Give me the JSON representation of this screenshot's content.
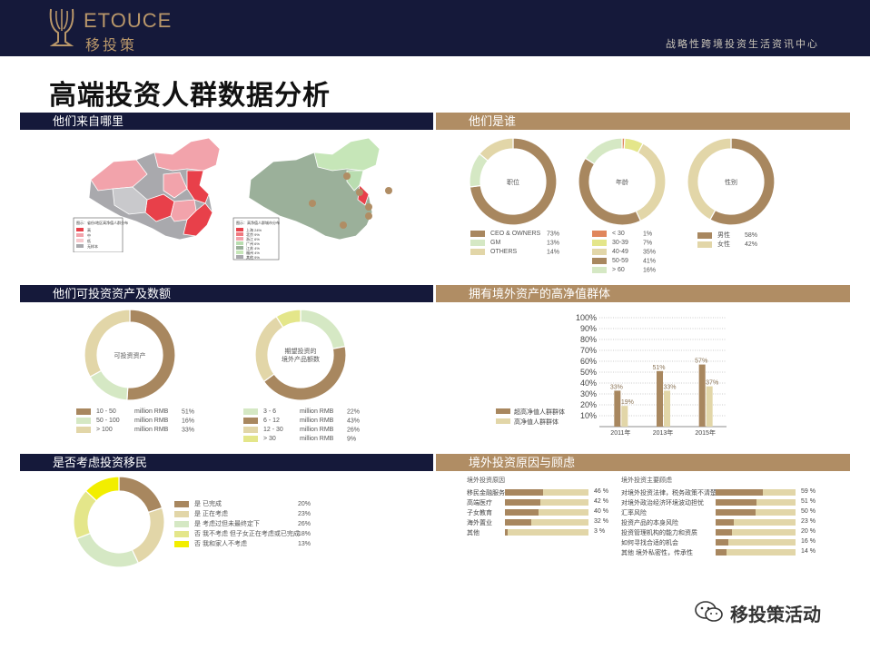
{
  "header": {
    "brand_en": "ETOUCE",
    "brand_cn": "移投策",
    "tagline": "战略性跨境投资生活资讯中心"
  },
  "title": "高端投资人群数据分析",
  "sections": {
    "origin": "他们来自哪里",
    "who": "他们是谁",
    "assets": "他们可投资资产及数额",
    "overseas": "拥有境外资产的高净值群体",
    "migration": "是否考虑投资移民",
    "reasons": "境外投资原因与顾虑"
  },
  "colors": {
    "navy": "#15193a",
    "gold": "#b08d64",
    "brown": "#a8875f",
    "sand": "#e2d6a8",
    "light_green": "#d5e8c4",
    "yellow": "#f2ee00",
    "yellow_green": "#e4e68a",
    "orange": "#e0865c",
    "map_red": "#e8404a",
    "map_pink": "#f2a3ab",
    "map_grey": "#a9a9ad",
    "map_green": "#9bb09a"
  },
  "maps": {
    "legend_left": {
      "title": "图示：省份/地区高净值人群分布",
      "items": [
        "高",
        "中",
        "低",
        "无样本"
      ]
    },
    "legend_right": {
      "title": "图示：高净值人群城市分布",
      "items": [
        "上海 24%",
        "北京 9%",
        "浙江 6%",
        "广州 6%",
        "江苏 4%",
        "福州 4%",
        "其他 9%"
      ]
    }
  },
  "who": {
    "position": {
      "label": "职位",
      "items": [
        {
          "name": "CEO & OWNERS",
          "pct": "73%",
          "value": 73,
          "color": "#a8875f"
        },
        {
          "name": "GM",
          "pct": "13%",
          "value": 13,
          "color": "#d5e8c4"
        },
        {
          "name": "OTHERS",
          "pct": "14%",
          "value": 14,
          "color": "#e2d6a8"
        }
      ]
    },
    "age": {
      "label": "年龄",
      "items": [
        {
          "name": "< 30",
          "pct": "1%",
          "value": 1,
          "color": "#e0865c"
        },
        {
          "name": "30-39",
          "pct": "7%",
          "value": 7,
          "color": "#e4e68a"
        },
        {
          "name": "40-49",
          "pct": "35%",
          "value": 35,
          "color": "#e2d6a8"
        },
        {
          "name": "50-59",
          "pct": "41%",
          "value": 41,
          "color": "#a8875f"
        },
        {
          "name": "> 60",
          "pct": "16%",
          "value": 16,
          "color": "#d5e8c4"
        }
      ]
    },
    "gender": {
      "label": "性别",
      "items": [
        {
          "name": "男性",
          "pct": "58%",
          "value": 58,
          "color": "#a8875f"
        },
        {
          "name": "女性",
          "pct": "42%",
          "value": 42,
          "color": "#e2d6a8"
        }
      ]
    }
  },
  "assets": {
    "investable": {
      "label": "可投资资产",
      "items": [
        {
          "name": "10 - 50",
          "unit": "million RMB",
          "pct": "51%",
          "value": 51,
          "color": "#a8875f"
        },
        {
          "name": "50 - 100",
          "unit": "million RMB",
          "pct": "16%",
          "value": 16,
          "color": "#d5e8c4"
        },
        {
          "name": "> 100",
          "unit": "million RMB",
          "pct": "33%",
          "value": 33,
          "color": "#e2d6a8"
        }
      ]
    },
    "expected": {
      "label_line1": "期望投资的",
      "label_line2": "境外产品额数",
      "items": [
        {
          "name": "3 - 6",
          "unit": "million RMB",
          "pct": "22%",
          "value": 22,
          "color": "#d5e8c4"
        },
        {
          "name": "6 - 12",
          "unit": "million RMB",
          "pct": "43%",
          "value": 43,
          "color": "#a8875f"
        },
        {
          "name": "12 - 30",
          "unit": "million RMB",
          "pct": "26%",
          "value": 26,
          "color": "#e2d6a8"
        },
        {
          "name": "> 30",
          "unit": "million RMB",
          "pct": "9%",
          "value": 9,
          "color": "#e4e68a"
        }
      ]
    }
  },
  "chart_data": {
    "type": "bar",
    "categories": [
      "2011年",
      "2013年",
      "2015年"
    ],
    "series": [
      {
        "name": "超高净值人群群体",
        "values": [
          33,
          51,
          57
        ],
        "labels": [
          "33%",
          "51%",
          "57%"
        ],
        "color": "#a8875f"
      },
      {
        "name": "高净值人群群体",
        "values": [
          19,
          33,
          37
        ],
        "labels": [
          "19%",
          "33%",
          "37%"
        ],
        "color": "#e2d6a8"
      }
    ],
    "yticks": [
      "100%",
      "90%",
      "80%",
      "70%",
      "60%",
      "50%",
      "40%",
      "30%",
      "20%",
      "10%"
    ],
    "ylim": [
      0,
      100
    ],
    "grid": true,
    "legend": "left"
  },
  "migration": {
    "items": [
      {
        "name": "是 已完成",
        "pct": "20%",
        "value": 20,
        "color": "#a8875f"
      },
      {
        "name": "是 正在考虑",
        "pct": "23%",
        "value": 23,
        "color": "#e2d6a8"
      },
      {
        "name": "是 考虑过但未最终定下",
        "pct": "26%",
        "value": 26,
        "color": "#d5e8c4"
      },
      {
        "name": "否 我不考虑 但子女正在考虑或已完成",
        "pct": "18%",
        "value": 18,
        "color": "#e4e68a"
      },
      {
        "name": "否 我和家人不考虑",
        "pct": "13%",
        "value": 13,
        "color": "#f2ee00"
      }
    ]
  },
  "reasons": {
    "left_title": "境外投资原因",
    "left": [
      {
        "name": "移民金融服务",
        "pct": "46 %",
        "value": 46
      },
      {
        "name": "高端医疗",
        "pct": "42 %",
        "value": 42
      },
      {
        "name": "子女教育",
        "pct": "40 %",
        "value": 40
      },
      {
        "name": "海外置业",
        "pct": "32 %",
        "value": 32
      },
      {
        "name": "其他",
        "pct": "3 %",
        "value": 3
      }
    ],
    "right_title": "境外投资主要顾虑",
    "right": [
      {
        "name": "对境外投资法律，税务政策不清楚",
        "pct": "59 %",
        "value": 59
      },
      {
        "name": "对境外政治经济环境波动担忧",
        "pct": "51 %",
        "value": 51
      },
      {
        "name": "汇率风险",
        "pct": "50 %",
        "value": 50
      },
      {
        "name": "投资产品的本身风险",
        "pct": "23 %",
        "value": 23
      },
      {
        "name": "投资管理机构的能力和资质",
        "pct": "20 %",
        "value": 20
      },
      {
        "name": "如何寻找合适的机会",
        "pct": "16 %",
        "value": 16
      },
      {
        "name": "其他 境外私密性，传承性",
        "pct": "14 %",
        "value": 14
      }
    ]
  },
  "watermark": "移投策活动"
}
